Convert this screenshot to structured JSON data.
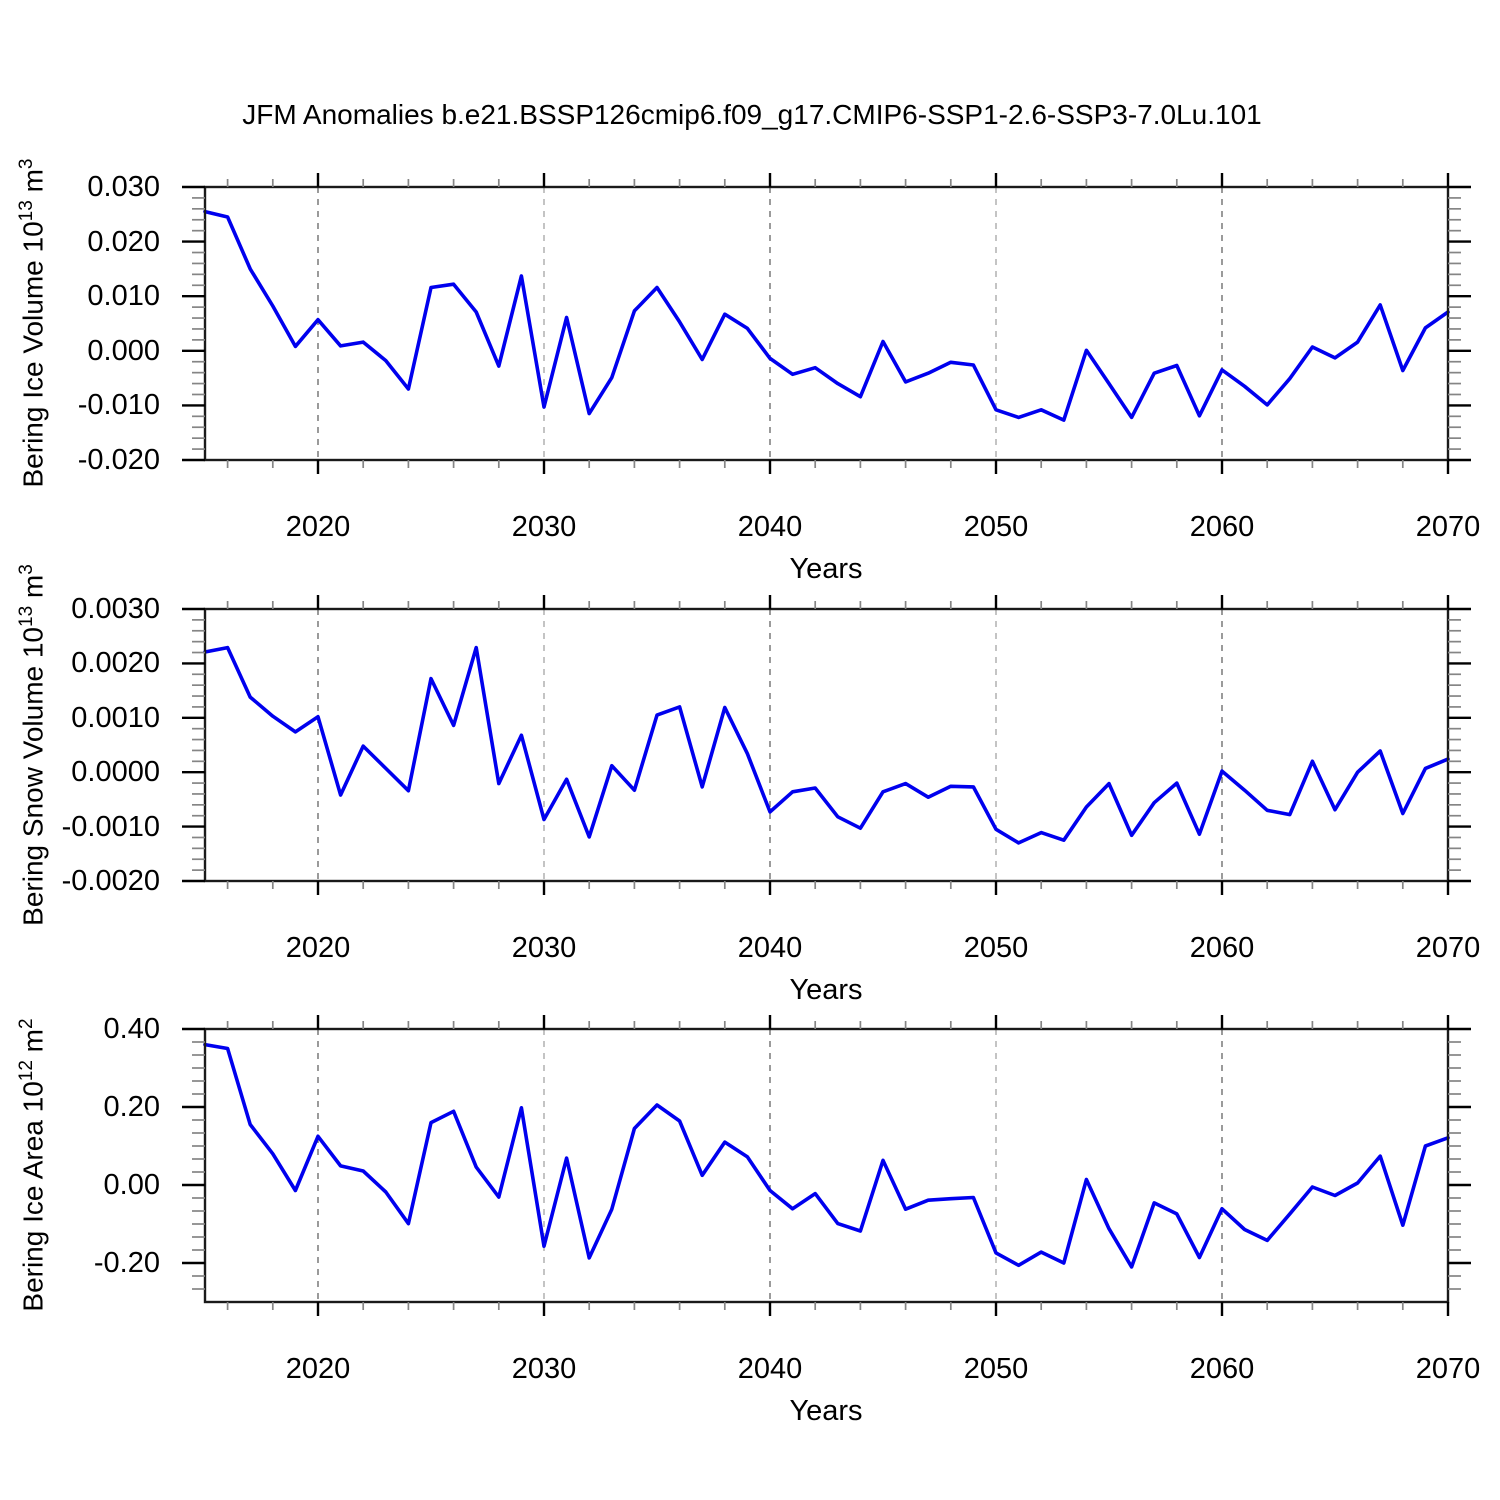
{
  "title": "JFM Anomalies b.e21.BSSP126cmip6.f09_g17.CMIP6-SSP1-2.6-SSP3-7.0Lu.101",
  "colors": {
    "background": "#FFFFFF",
    "text": "#000000",
    "line": "#0000EE",
    "frame": "#1A1A1A",
    "major_tick": "#000000",
    "minor_tick": "#858585",
    "grid_dark": "#707070",
    "grid_light": "#ABABAB"
  },
  "x_axis": {
    "label": "Years",
    "min": 2015,
    "max": 2070,
    "tick_values": [
      2020,
      2030,
      2040,
      2050,
      2060,
      2070
    ],
    "tick_labels": [
      "2020",
      "2030",
      "2040",
      "2050",
      "2060",
      "2070"
    ],
    "minor_step": 2,
    "gridlines": [
      {
        "year": 2020,
        "shade": "dark"
      },
      {
        "year": 2030,
        "shade": "light"
      },
      {
        "year": 2040,
        "shade": "dark"
      },
      {
        "year": 2050,
        "shade": "light"
      },
      {
        "year": 2060,
        "shade": "dark"
      }
    ]
  },
  "years": [
    2015,
    2016,
    2017,
    2018,
    2019,
    2020,
    2021,
    2022,
    2023,
    2024,
    2025,
    2026,
    2027,
    2028,
    2029,
    2030,
    2031,
    2032,
    2033,
    2034,
    2035,
    2036,
    2037,
    2038,
    2039,
    2040,
    2041,
    2042,
    2043,
    2044,
    2045,
    2046,
    2047,
    2048,
    2049,
    2050,
    2051,
    2052,
    2053,
    2054,
    2055,
    2056,
    2057,
    2058,
    2059,
    2060,
    2061,
    2062,
    2063,
    2064,
    2065,
    2066,
    2067,
    2068,
    2069,
    2070
  ],
  "chart_data": [
    {
      "type": "line",
      "name": "bering-ice-volume-anomaly",
      "ylabel_prefix": "Bering Ice Volume 10",
      "ylabel_sup1": "13",
      "ylabel_mid": " m",
      "ylabel_sup2": "3",
      "ylim": [
        -0.02,
        0.03
      ],
      "ytick_step": 0.01,
      "minors_per_major": 4,
      "yticks": [
        {
          "v": 0.03,
          "label": "0.030"
        },
        {
          "v": 0.02,
          "label": "0.020"
        },
        {
          "v": 0.01,
          "label": "0.010"
        },
        {
          "v": 0.0,
          "label": "0.000"
        },
        {
          "v": -0.01,
          "label": "-0.010"
        },
        {
          "v": -0.02,
          "label": "-0.020"
        }
      ],
      "values": [
        0.0255,
        0.0245,
        0.015,
        0.0082,
        0.0008,
        0.0057,
        0.0009,
        0.0016,
        -0.0018,
        -0.007,
        0.0116,
        0.0122,
        0.0071,
        -0.0028,
        0.0137,
        -0.0103,
        0.0061,
        -0.0115,
        -0.0049,
        0.0073,
        0.0116,
        0.0053,
        -0.0016,
        0.0067,
        0.0041,
        -0.0014,
        -0.0043,
        -0.0031,
        -0.006,
        -0.0084,
        0.0017,
        -0.0057,
        -0.0041,
        -0.0021,
        -0.0026,
        -0.0108,
        -0.0122,
        -0.0108,
        -0.0127,
        0.0001,
        -0.006,
        -0.0122,
        -0.0041,
        -0.0027,
        -0.0119,
        -0.0035,
        -0.0065,
        -0.0099,
        -0.0051,
        0.0007,
        -0.0013,
        0.0016,
        0.0084,
        -0.0036,
        0.0042,
        0.0071
      ]
    },
    {
      "type": "line",
      "name": "bering-snow-volume-anomaly",
      "ylabel_prefix": "Bering Snow Volume 10",
      "ylabel_sup1": "13",
      "ylabel_mid": " m",
      "ylabel_sup2": "3",
      "ylim": [
        -0.002,
        0.003
      ],
      "ytick_step": 0.001,
      "minors_per_major": 4,
      "yticks": [
        {
          "v": 0.003,
          "label": "0.0030"
        },
        {
          "v": 0.002,
          "label": "0.0020"
        },
        {
          "v": 0.001,
          "label": "0.0010"
        },
        {
          "v": 0.0,
          "label": "0.0000"
        },
        {
          "v": -0.001,
          "label": "-0.0010"
        },
        {
          "v": -0.002,
          "label": "-0.0020"
        }
      ],
      "values": [
        0.00221,
        0.00229,
        0.00138,
        0.00103,
        0.00074,
        0.00102,
        -0.00042,
        0.00048,
        7e-05,
        -0.00034,
        0.00172,
        0.00086,
        0.00229,
        -0.00021,
        0.00068,
        -0.00087,
        -0.00013,
        -0.00119,
        0.00012,
        -0.00033,
        0.00105,
        0.0012,
        -0.00027,
        0.00119,
        0.00034,
        -0.00073,
        -0.00036,
        -0.00029,
        -0.00082,
        -0.00103,
        -0.00036,
        -0.00021,
        -0.00046,
        -0.00026,
        -0.00027,
        -0.00105,
        -0.0013,
        -0.00111,
        -0.00125,
        -0.00064,
        -0.00021,
        -0.00116,
        -0.00056,
        -0.0002,
        -0.00114,
        2e-05,
        -0.00033,
        -0.0007,
        -0.00078,
        0.0002,
        -0.00069,
        0.0,
        0.00039,
        -0.00076,
        7e-05,
        0.00024
      ]
    },
    {
      "type": "line",
      "name": "bering-ice-area-anomaly",
      "ylabel_prefix": "Bering Ice Area 10",
      "ylabel_sup1": "12",
      "ylabel_mid": " m",
      "ylabel_sup2": "2",
      "ylim": [
        -0.3,
        0.4
      ],
      "ytick_step": 0.2,
      "minors_per_major": 5,
      "yticks": [
        {
          "v": 0.4,
          "label": "0.40"
        },
        {
          "v": 0.2,
          "label": "0.20"
        },
        {
          "v": 0.0,
          "label": "0.00"
        },
        {
          "v": -0.2,
          "label": "-0.20"
        }
      ],
      "values": [
        0.36,
        0.35,
        0.155,
        0.08,
        -0.014,
        0.125,
        0.049,
        0.036,
        -0.018,
        -0.099,
        0.16,
        0.189,
        0.046,
        -0.031,
        0.198,
        -0.157,
        0.069,
        -0.187,
        -0.062,
        0.145,
        0.205,
        0.164,
        0.025,
        0.11,
        0.072,
        -0.014,
        -0.061,
        -0.022,
        -0.099,
        -0.118,
        0.063,
        -0.062,
        -0.039,
        -0.035,
        -0.032,
        -0.174,
        -0.206,
        -0.172,
        -0.2,
        0.014,
        -0.112,
        -0.21,
        -0.046,
        -0.074,
        -0.186,
        -0.061,
        -0.114,
        -0.142,
        -0.074,
        -0.005,
        -0.027,
        0.005,
        0.074,
        -0.103,
        0.1,
        0.121
      ]
    }
  ]
}
